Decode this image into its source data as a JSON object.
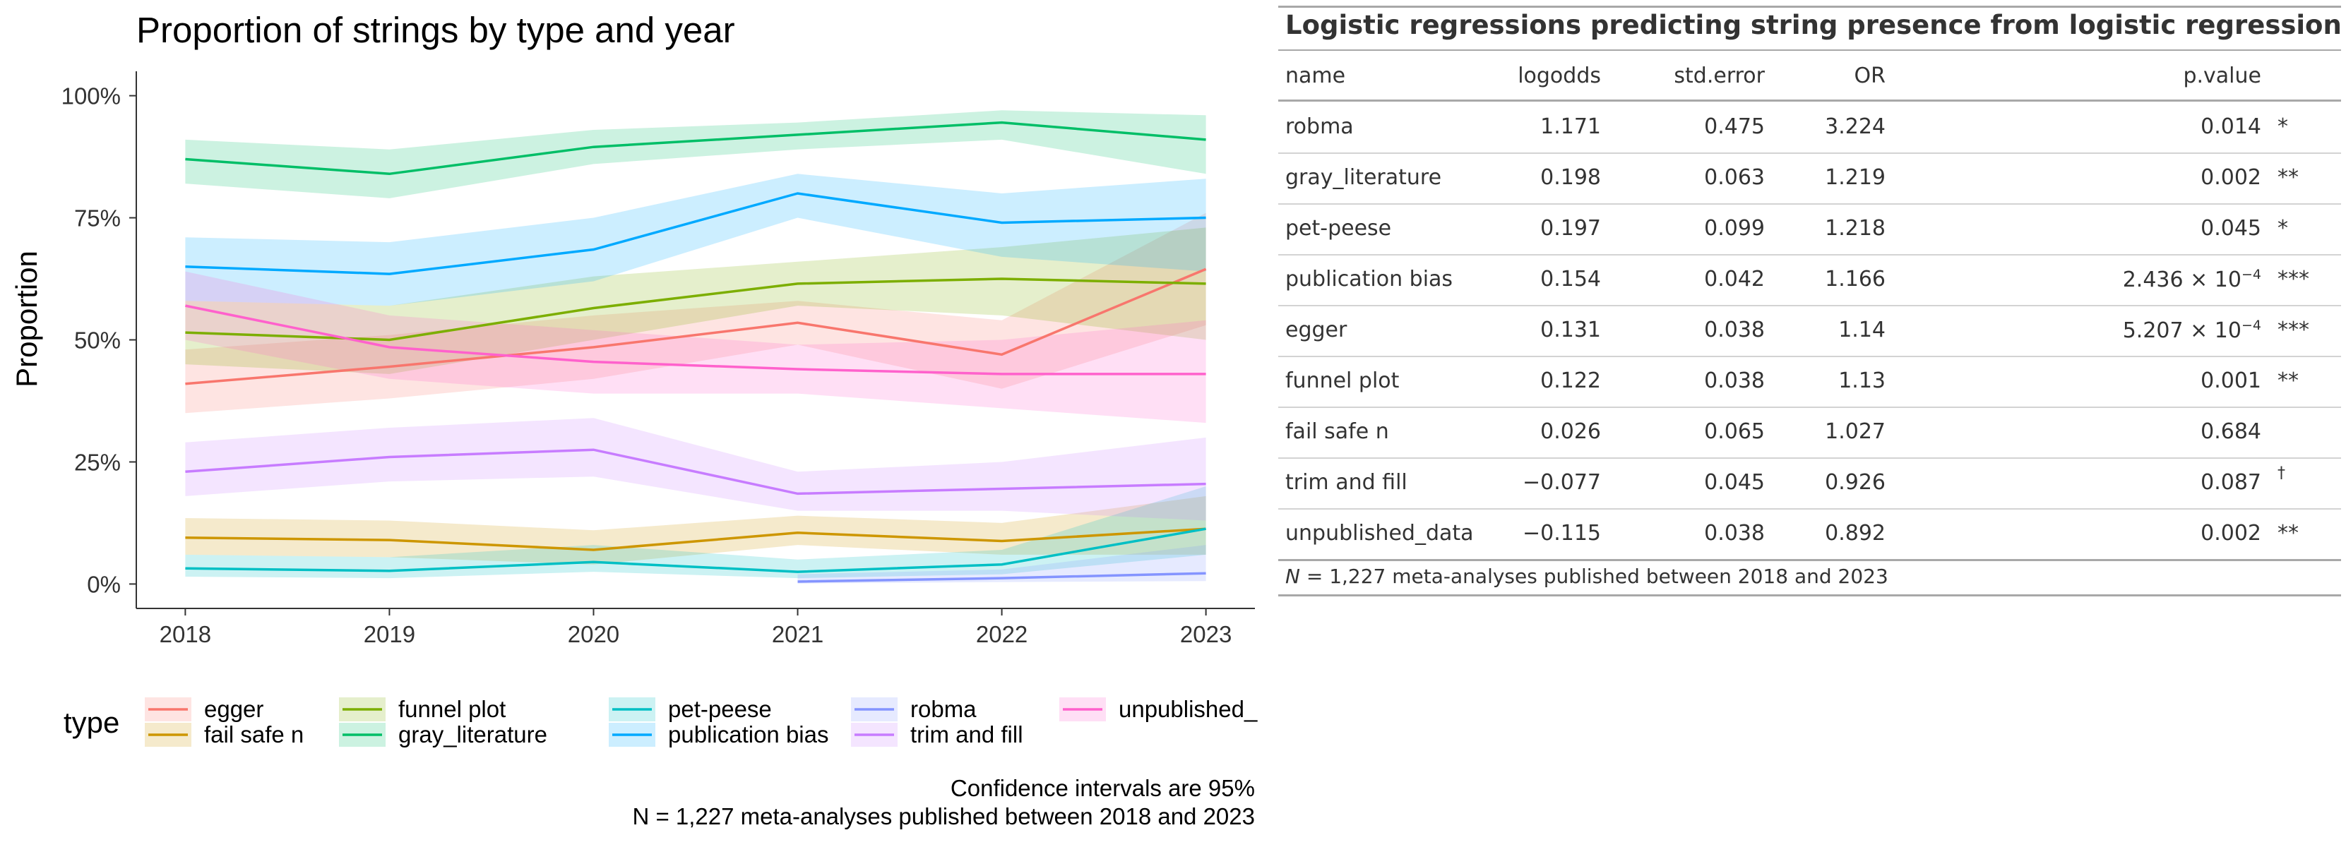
{
  "chart_data": {
    "type": "line",
    "title": "Proportion of strings by type and year",
    "xlabel": "",
    "ylabel": "Proportion",
    "x": [
      2018,
      2019,
      2020,
      2021,
      2022,
      2023
    ],
    "x_tick_labels": [
      "2018",
      "2019",
      "2020",
      "2021",
      "2022",
      "2023"
    ],
    "ylim": [
      0,
      1
    ],
    "y_ticks": [
      0,
      0.25,
      0.5,
      0.75,
      1.0
    ],
    "y_tick_labels": [
      "0%",
      "25%",
      "50%",
      "75%",
      "100%"
    ],
    "grid": false,
    "confidence_bands": true,
    "legend_title": "type",
    "legend_position": "bottom",
    "caption": [
      "Confidence intervals are 95%",
      "N = 1,227 meta-analyses published between 2018 and 2023"
    ],
    "series": [
      {
        "name": "egger",
        "color": "#F8766D",
        "values": [
          0.41,
          0.445,
          0.485,
          0.535,
          0.47,
          0.645
        ],
        "lower": [
          0.35,
          0.38,
          0.42,
          0.49,
          0.4,
          0.53
        ],
        "upper": [
          0.48,
          0.51,
          0.55,
          0.58,
          0.54,
          0.76
        ]
      },
      {
        "name": "fail safe n",
        "color": "#CD9600",
        "values": [
          0.095,
          0.09,
          0.07,
          0.105,
          0.088,
          0.113
        ],
        "lower": [
          0.06,
          0.055,
          0.04,
          0.08,
          0.06,
          0.06
        ],
        "upper": [
          0.135,
          0.13,
          0.11,
          0.14,
          0.125,
          0.18
        ]
      },
      {
        "name": "funnel plot",
        "color": "#7CAE00",
        "values": [
          0.515,
          0.5,
          0.565,
          0.615,
          0.625,
          0.615
        ],
        "lower": [
          0.45,
          0.43,
          0.5,
          0.57,
          0.55,
          0.5
        ],
        "upper": [
          0.58,
          0.57,
          0.63,
          0.66,
          0.69,
          0.73
        ]
      },
      {
        "name": "gray_literature",
        "color": "#00BE67",
        "values": [
          0.87,
          0.84,
          0.895,
          0.92,
          0.945,
          0.91
        ],
        "lower": [
          0.82,
          0.79,
          0.86,
          0.89,
          0.91,
          0.84
        ],
        "upper": [
          0.91,
          0.89,
          0.93,
          0.945,
          0.97,
          0.96
        ]
      },
      {
        "name": "pet-peese",
        "color": "#00BFC4",
        "values": [
          0.032,
          0.027,
          0.045,
          0.025,
          0.04,
          0.113
        ],
        "lower": [
          0.015,
          0.012,
          0.025,
          0.012,
          0.02,
          0.06
        ],
        "upper": [
          0.06,
          0.055,
          0.08,
          0.05,
          0.07,
          0.2
        ]
      },
      {
        "name": "publication bias",
        "color": "#00A9FF",
        "values": [
          0.65,
          0.635,
          0.685,
          0.8,
          0.74,
          0.75
        ],
        "lower": [
          0.58,
          0.57,
          0.62,
          0.75,
          0.67,
          0.64
        ],
        "upper": [
          0.71,
          0.7,
          0.75,
          0.84,
          0.8,
          0.83
        ]
      },
      {
        "name": "robma",
        "color": "#8494FF",
        "values": [
          null,
          null,
          null,
          0.005,
          0.012,
          0.022
        ],
        "lower": [
          null,
          null,
          null,
          0.001,
          0.004,
          0.006
        ],
        "upper": [
          null,
          null,
          null,
          0.02,
          0.03,
          0.08
        ]
      },
      {
        "name": "trim and fill",
        "color": "#C77CFF",
        "values": [
          0.23,
          0.26,
          0.275,
          0.185,
          0.195,
          0.205
        ],
        "lower": [
          0.18,
          0.21,
          0.22,
          0.15,
          0.15,
          0.13
        ],
        "upper": [
          0.29,
          0.32,
          0.34,
          0.23,
          0.25,
          0.3
        ]
      },
      {
        "name": "unpublished_",
        "color": "#FF61CC",
        "values": [
          0.57,
          0.485,
          0.455,
          0.44,
          0.43,
          0.43
        ],
        "lower": [
          0.5,
          0.42,
          0.39,
          0.39,
          0.36,
          0.33
        ],
        "upper": [
          0.64,
          0.55,
          0.52,
          0.49,
          0.5,
          0.54
        ]
      }
    ]
  },
  "table": {
    "title": "Logistic regressions predicting string presence from logistic regression models",
    "columns": [
      "name",
      "logodds",
      "std.error",
      "OR",
      "p.value"
    ],
    "rows": [
      {
        "name": "robma",
        "logodds": "1.171",
        "std_error": "0.475",
        "or": "3.224",
        "p_value": "0.014",
        "p_exp": "",
        "sig": "*"
      },
      {
        "name": "gray_literature",
        "logodds": "0.198",
        "std_error": "0.063",
        "or": "1.219",
        "p_value": "0.002",
        "p_exp": "",
        "sig": "**"
      },
      {
        "name": "pet-peese",
        "logodds": "0.197",
        "std_error": "0.099",
        "or": "1.218",
        "p_value": "0.045",
        "p_exp": "",
        "sig": "*"
      },
      {
        "name": "publication bias",
        "logodds": "0.154",
        "std_error": "0.042",
        "or": "1.166",
        "p_value": "2.436 × 10",
        "p_exp": "−4",
        "sig": "***"
      },
      {
        "name": "egger",
        "logodds": "0.131",
        "std_error": "0.038",
        "or": "1.14",
        "p_value": "5.207 × 10",
        "p_exp": "−4",
        "sig": "***"
      },
      {
        "name": "funnel plot",
        "logodds": "0.122",
        "std_error": "0.038",
        "or": "1.13",
        "p_value": "0.001",
        "p_exp": "",
        "sig": "**"
      },
      {
        "name": "fail safe n",
        "logodds": "0.026",
        "std_error": "0.065",
        "or": "1.027",
        "p_value": "0.684",
        "p_exp": "",
        "sig": ""
      },
      {
        "name": "trim and fill",
        "logodds": "−0.077",
        "std_error": "0.045",
        "or": "0.926",
        "p_value": "0.087",
        "p_exp": "",
        "sig": "†"
      },
      {
        "name": "unpublished_data",
        "logodds": "−0.115",
        "std_error": "0.038",
        "or": "0.892",
        "p_value": "0.002",
        "p_exp": "",
        "sig": "**"
      }
    ],
    "footnote_prefix": "N",
    "footnote": " = 1,227 meta-analyses published between 2018 and 2023"
  }
}
